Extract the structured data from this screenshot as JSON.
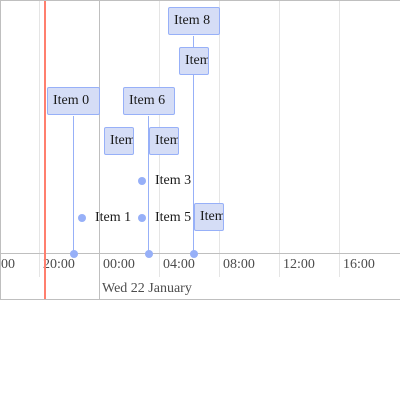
{
  "timeline": {
    "minor_labels": [
      "00",
      "20:00",
      "00:00",
      "04:00",
      "08:00",
      "12:00",
      "16:00"
    ],
    "major_label": "Wed 22 January",
    "items": [
      {
        "label": "Item 0"
      },
      {
        "label": "Item 1"
      },
      {
        "label": "Item"
      },
      {
        "label": "Item 3"
      },
      {
        "label": "Item"
      },
      {
        "label": "Item 5"
      },
      {
        "label": "Item 6"
      },
      {
        "label": "Item"
      },
      {
        "label": "Item 8"
      },
      {
        "label": "Item"
      }
    ],
    "colors": {
      "item_bg": "#d5ddf6",
      "item_border": "#97b0f8",
      "current_time": "#ff7f6e",
      "grid": "#e5e5e5"
    }
  }
}
